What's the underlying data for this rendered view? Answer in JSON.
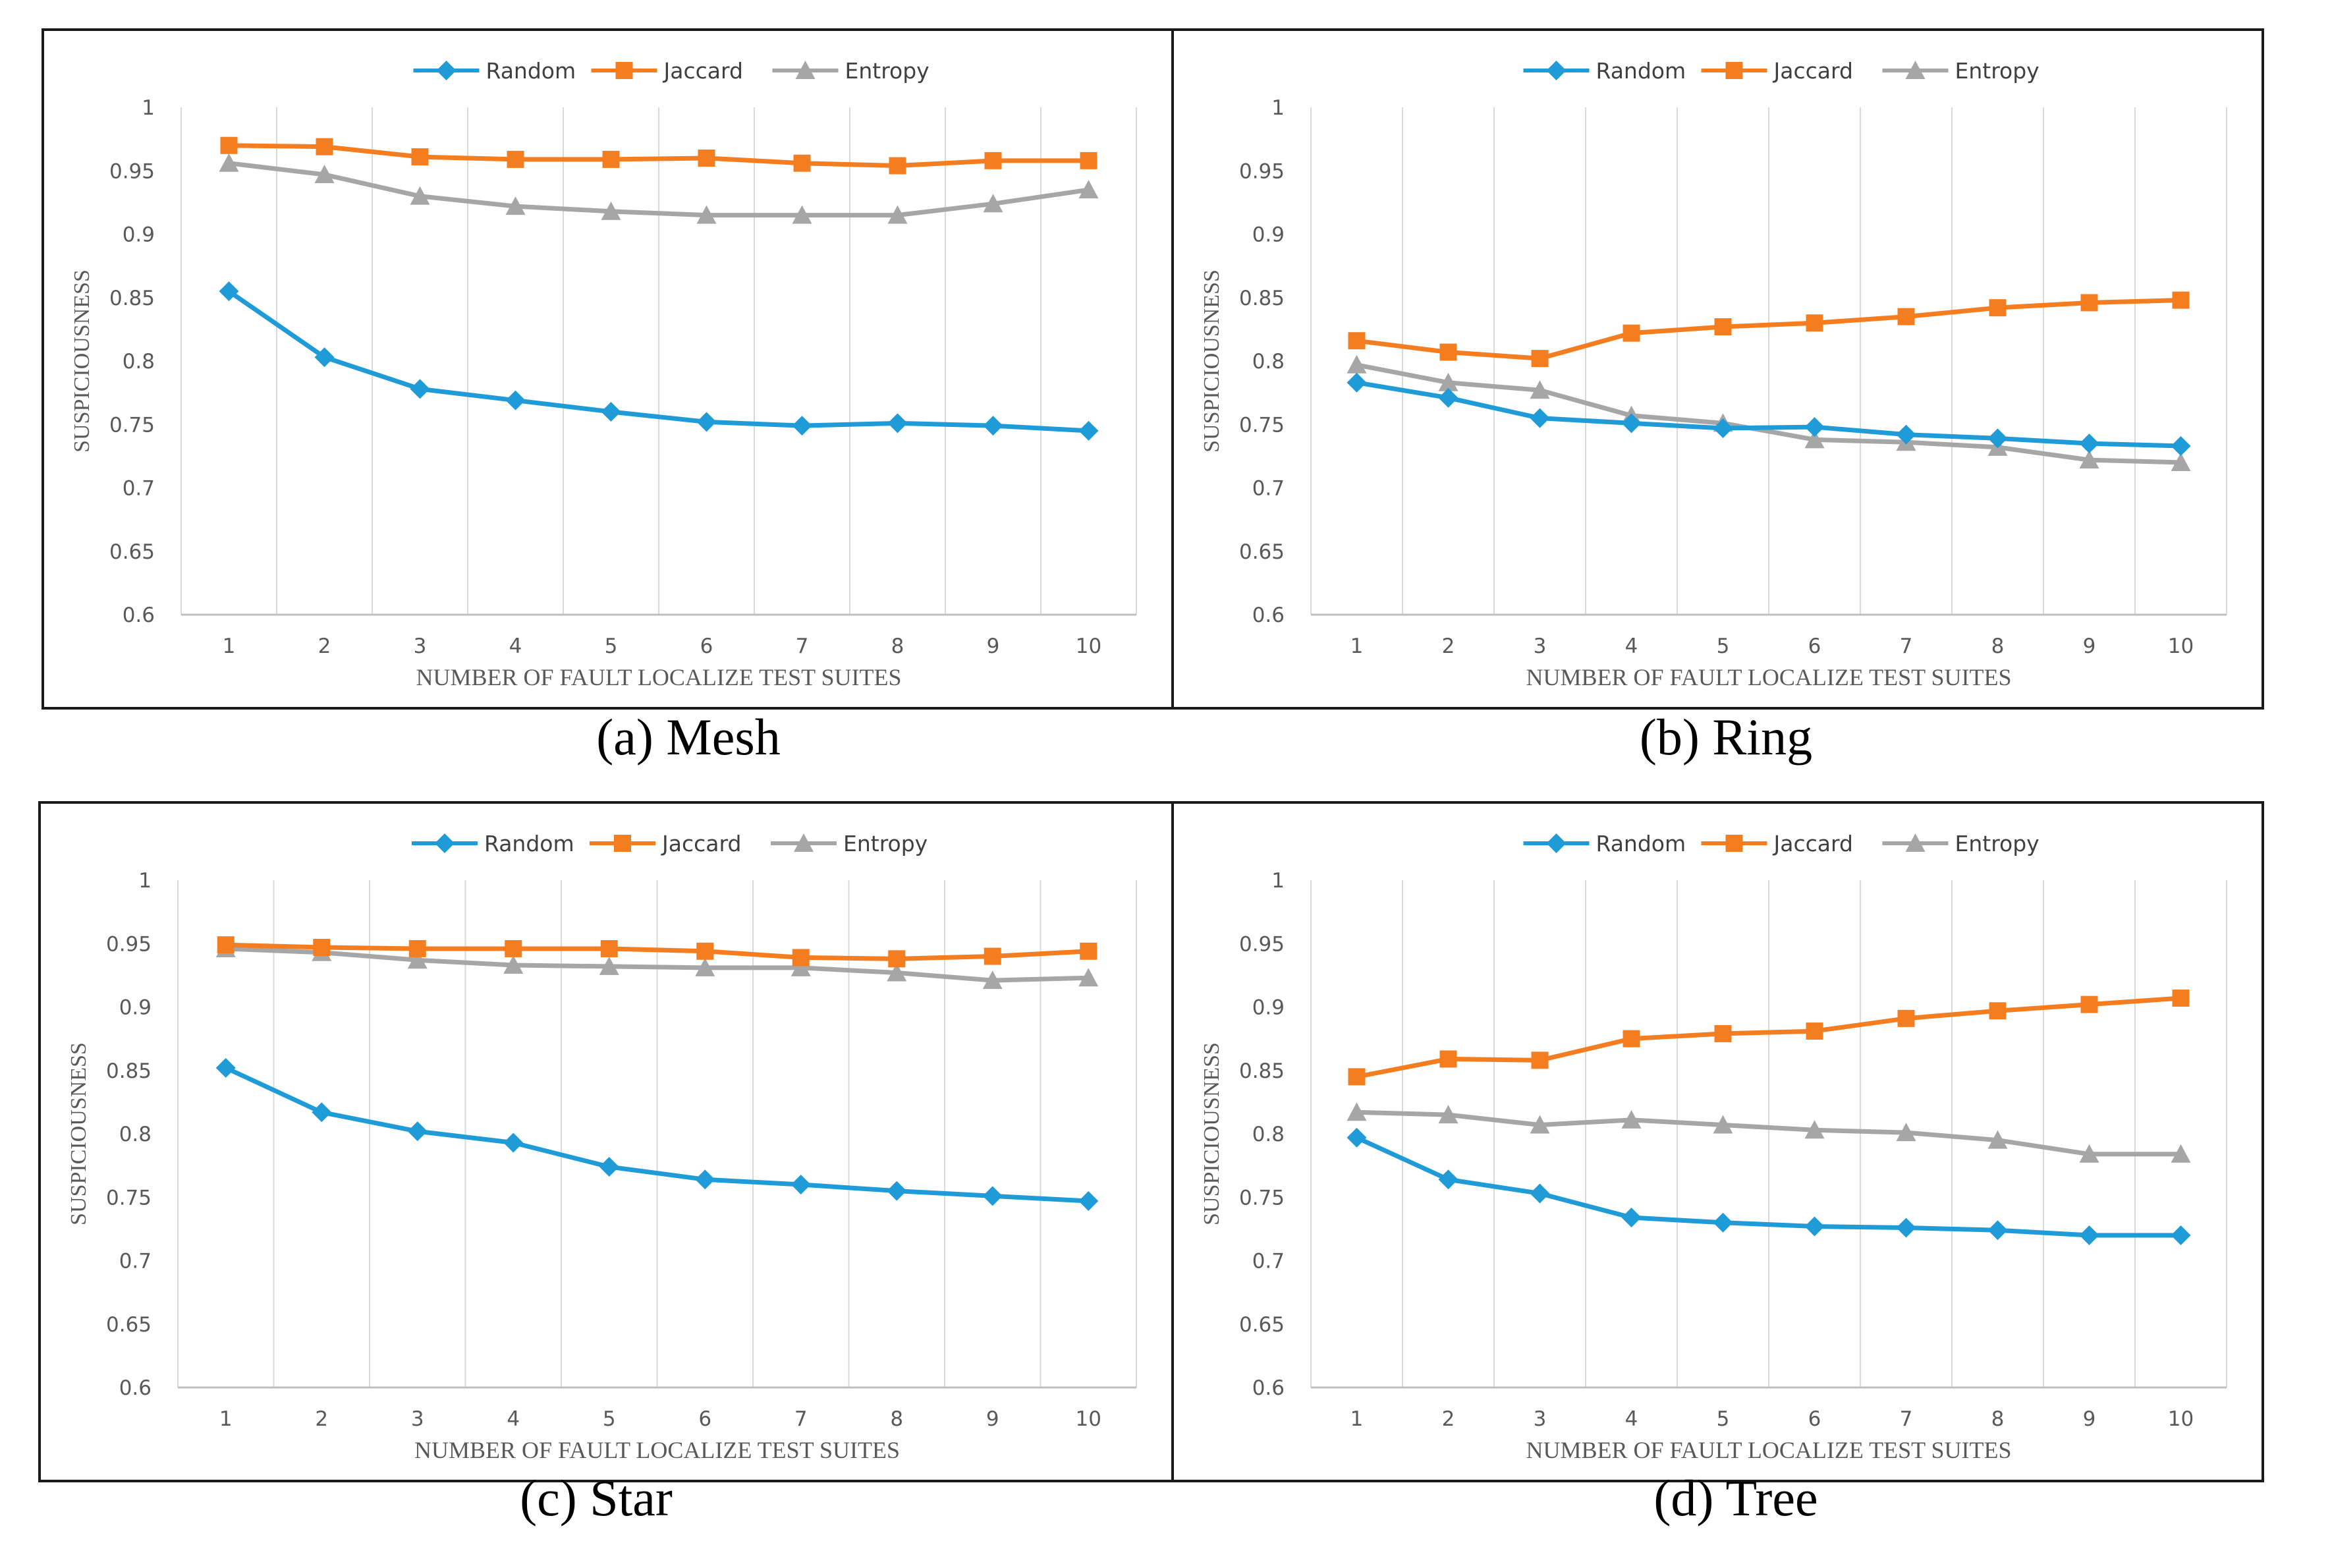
{
  "chart_data": [
    {
      "type": "line",
      "caption": "(a) Mesh",
      "xlabel": "NUMBER OF FAULT LOCALIZE TEST SUITES",
      "ylabel": "SUSPICIOUSNESS",
      "ylim": [
        0.6,
        1
      ],
      "yticks": [
        "0.6",
        "0.65",
        "0.7",
        "0.75",
        "0.8",
        "0.85",
        "0.9",
        "0.95",
        "1"
      ],
      "categories": [
        "1",
        "2",
        "3",
        "4",
        "5",
        "6",
        "7",
        "8",
        "9",
        "10"
      ],
      "grid": "vertical",
      "legend": "top-center",
      "series": [
        {
          "name": "Random",
          "color": "#1f9bd7",
          "marker": "diamond",
          "values": [
            0.855,
            0.803,
            0.778,
            0.769,
            0.76,
            0.752,
            0.749,
            0.751,
            0.749,
            0.745
          ]
        },
        {
          "name": "Jaccard",
          "color": "#f47d20",
          "marker": "square",
          "values": [
            0.97,
            0.969,
            0.961,
            0.959,
            0.959,
            0.96,
            0.956,
            0.954,
            0.958,
            0.958
          ]
        },
        {
          "name": "Entropy",
          "color": "#a6a6a6",
          "marker": "triangle",
          "values": [
            0.956,
            0.947,
            0.93,
            0.922,
            0.918,
            0.915,
            0.915,
            0.915,
            0.924,
            0.935
          ]
        }
      ]
    },
    {
      "type": "line",
      "caption": "(b) Ring",
      "xlabel": "NUMBER OF FAULT LOCALIZE TEST SUITES",
      "ylabel": "SUSPICIOUSNESS",
      "ylim": [
        0.6,
        1
      ],
      "yticks": [
        "0.6",
        "0.65",
        "0.7",
        "0.75",
        "0.8",
        "0.85",
        "0.9",
        "0.95",
        "1"
      ],
      "categories": [
        "1",
        "2",
        "3",
        "4",
        "5",
        "6",
        "7",
        "8",
        "9",
        "10"
      ],
      "grid": "vertical",
      "legend": "top-center",
      "series": [
        {
          "name": "Random",
          "color": "#1f9bd7",
          "marker": "diamond",
          "values": [
            0.783,
            0.771,
            0.755,
            0.751,
            0.747,
            0.748,
            0.742,
            0.739,
            0.735,
            0.733
          ]
        },
        {
          "name": "Jaccard",
          "color": "#f47d20",
          "marker": "square",
          "values": [
            0.816,
            0.807,
            0.802,
            0.822,
            0.827,
            0.83,
            0.835,
            0.842,
            0.846,
            0.848
          ]
        },
        {
          "name": "Entropy",
          "color": "#a6a6a6",
          "marker": "triangle",
          "values": [
            0.797,
            0.783,
            0.777,
            0.757,
            0.751,
            0.738,
            0.736,
            0.732,
            0.722,
            0.72
          ]
        }
      ]
    },
    {
      "type": "line",
      "caption": "(c) Star",
      "xlabel": "NUMBER OF FAULT LOCALIZE TEST SUITES",
      "ylabel": "SUSPICIOUSNESS",
      "ylim": [
        0.6,
        1
      ],
      "yticks": [
        "0.6",
        "0.65",
        "0.7",
        "0.75",
        "0.8",
        "0.85",
        "0.9",
        "0.95",
        "1"
      ],
      "categories": [
        "1",
        "2",
        "3",
        "4",
        "5",
        "6",
        "7",
        "8",
        "9",
        "10"
      ],
      "grid": "vertical",
      "legend": "top-center",
      "series": [
        {
          "name": "Random",
          "color": "#1f9bd7",
          "marker": "diamond",
          "values": [
            0.852,
            0.817,
            0.802,
            0.793,
            0.774,
            0.764,
            0.76,
            0.755,
            0.751,
            0.747
          ]
        },
        {
          "name": "Jaccard",
          "color": "#f47d20",
          "marker": "square",
          "values": [
            0.949,
            0.947,
            0.946,
            0.946,
            0.946,
            0.944,
            0.939,
            0.938,
            0.94,
            0.944
          ]
        },
        {
          "name": "Entropy",
          "color": "#a6a6a6",
          "marker": "triangle",
          "values": [
            0.946,
            0.943,
            0.937,
            0.933,
            0.932,
            0.931,
            0.931,
            0.927,
            0.921,
            0.923
          ]
        }
      ]
    },
    {
      "type": "line",
      "caption": "(d) Tree",
      "xlabel": "NUMBER OF FAULT LOCALIZE TEST SUITES",
      "ylabel": "SUSPICIOUSNESS",
      "ylim": [
        0.6,
        1
      ],
      "yticks": [
        "0.6",
        "0.65",
        "0.7",
        "0.75",
        "0.8",
        "0.85",
        "0.9",
        "0.95",
        "1"
      ],
      "categories": [
        "1",
        "2",
        "3",
        "4",
        "5",
        "6",
        "7",
        "8",
        "9",
        "10"
      ],
      "grid": "vertical",
      "legend": "top-center",
      "series": [
        {
          "name": "Random",
          "color": "#1f9bd7",
          "marker": "diamond",
          "values": [
            0.797,
            0.764,
            0.753,
            0.734,
            0.73,
            0.727,
            0.726,
            0.724,
            0.72,
            0.72
          ]
        },
        {
          "name": "Jaccard",
          "color": "#f47d20",
          "marker": "square",
          "values": [
            0.845,
            0.859,
            0.858,
            0.875,
            0.879,
            0.881,
            0.891,
            0.897,
            0.902,
            0.907
          ]
        },
        {
          "name": "Entropy",
          "color": "#a6a6a6",
          "marker": "triangle",
          "values": [
            0.817,
            0.815,
            0.807,
            0.811,
            0.807,
            0.803,
            0.801,
            0.795,
            0.784,
            0.784
          ]
        }
      ]
    }
  ]
}
